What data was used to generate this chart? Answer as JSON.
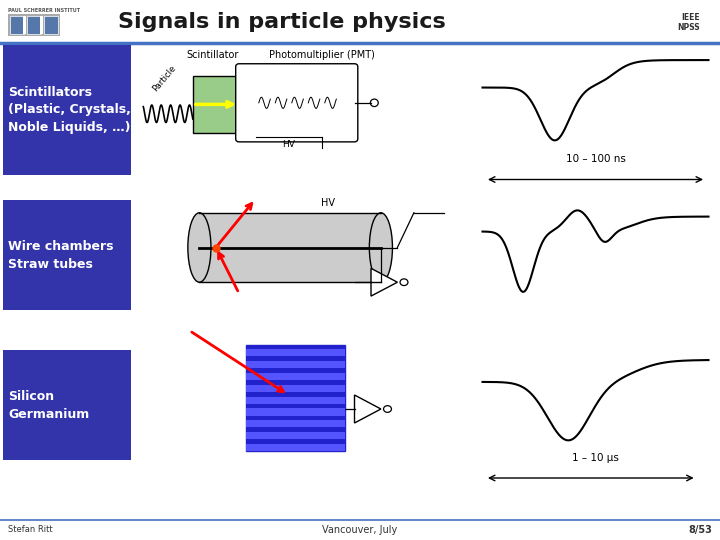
{
  "title": "Signals in particle physics",
  "title_color": "#1a1a1a",
  "title_fontsize": 16,
  "bg_color": "#ffffff",
  "header_line_color": "#4472c4",
  "label_bg_color": "#3333aa",
  "label_text_color": "#ffffff",
  "label_fontsize": 9,
  "timing_label1": "10 – 100 ns",
  "timing_label2": "1 – 10 μs",
  "footer_left": "Stefan Ritt",
  "footer_center": "Vancouver, July",
  "footer_right": "8/53",
  "pmt_label": "Photomultiplier (PMT)",
  "scintillator_label": "Scintillator",
  "hv_label": "HV",
  "particle_label": "Particle"
}
